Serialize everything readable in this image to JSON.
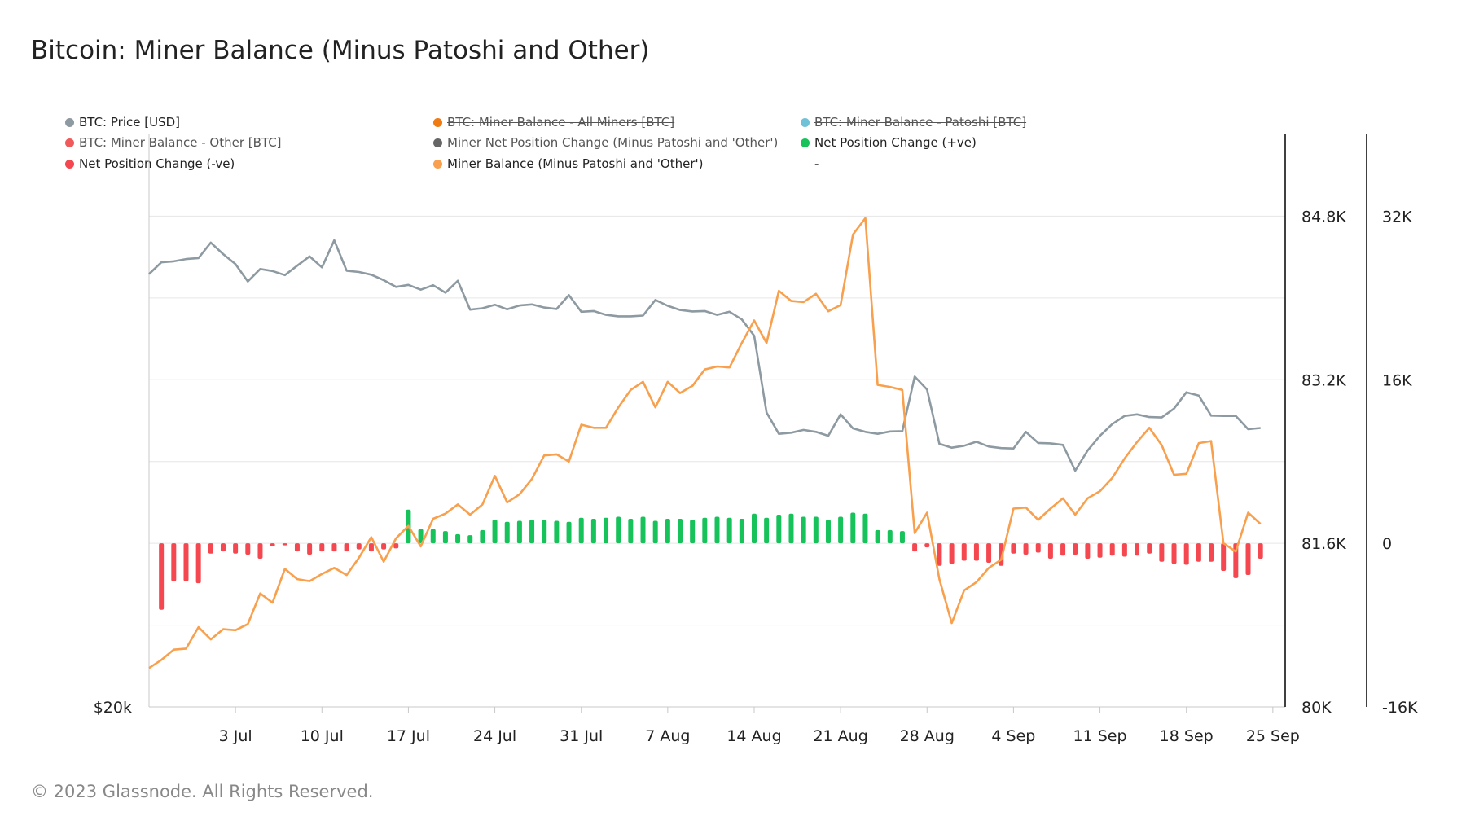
{
  "title": "Bitcoin: Miner Balance (Minus Patoshi and Other)",
  "footer": "© 2023 Glassnode. All Rights Reserved.",
  "legend": [
    {
      "label": "BTC: Price [USD]",
      "color": "#8e9aa1",
      "active": true
    },
    {
      "label": "BTC: Miner Balance - All Miners [BTC]",
      "color": "#f07b12",
      "active": false
    },
    {
      "label": "BTC: Miner Balance - Patoshi [BTC]",
      "color": "#6fc1d8",
      "active": false
    },
    {
      "label": "BTC: Miner Balance - Other [BTC]",
      "color": "#f05a5a",
      "active": false
    },
    {
      "label": "Miner Net Position Change (Minus Patoshi and 'Other')",
      "color": "#666666",
      "active": false
    },
    {
      "label": "Net Position Change (+ve)",
      "color": "#16c25a",
      "active": true
    },
    {
      "label": "Net Position Change (-ve)",
      "color": "#f5474f",
      "active": true
    },
    {
      "label": "Miner Balance (Minus Patoshi and 'Other')",
      "color": "#f8a04d",
      "active": true
    },
    {
      "label": "-",
      "color": "",
      "active": true
    }
  ],
  "chart_data": {
    "type": "line",
    "x_start": "2023-06-26",
    "x_end": "2023-09-26",
    "x_tick_labels": [
      "3 Jul",
      "10 Jul",
      "17 Jul",
      "24 Jul",
      "31 Jul",
      "7 Aug",
      "14 Aug",
      "21 Aug",
      "28 Aug",
      "4 Sep",
      "11 Sep",
      "18 Sep",
      "25 Sep"
    ],
    "x_tick_dates": [
      "2023-07-03",
      "2023-07-10",
      "2023-07-17",
      "2023-07-24",
      "2023-07-31",
      "2023-08-07",
      "2023-08-14",
      "2023-08-21",
      "2023-08-28",
      "2023-09-04",
      "2023-09-11",
      "2023-09-18",
      "2023-09-25"
    ],
    "axes": {
      "price": {
        "position": "left",
        "scale": "log",
        "tick_labels": [
          "$20k"
        ],
        "tick_values": [
          20000
        ]
      },
      "balance": {
        "position": "right",
        "range": [
          80000,
          85600
        ],
        "tick_labels": [
          "80K",
          "81.6K",
          "83.2K",
          "84.8K"
        ],
        "tick_values": [
          80000,
          81600,
          83200,
          84800
        ]
      },
      "position_change": {
        "position": "right",
        "range": [
          -16000,
          40000
        ],
        "tick_labels": [
          "-16K",
          "0",
          "16K",
          "32K"
        ],
        "tick_values": [
          -16000,
          0,
          16000,
          32000
        ]
      }
    },
    "grid": true,
    "legend_position": "top",
    "series": [
      {
        "name": "BTC: Price [USD]",
        "axis": "price",
        "color": "#8e9aa1",
        "style": "line",
        "values": [
          30500,
          30850,
          30880,
          30950,
          30980,
          31450,
          31100,
          30800,
          30280,
          30650,
          30590,
          30470,
          30750,
          31030,
          30700,
          31520,
          30600,
          30560,
          30480,
          30320,
          30120,
          30180,
          30040,
          30170,
          29950,
          30300,
          29460,
          29500,
          29600,
          29470,
          29580,
          29610,
          29520,
          29480,
          29880,
          29400,
          29420,
          29310,
          29270,
          29270,
          29290,
          29740,
          29570,
          29450,
          29410,
          29420,
          29310,
          29400,
          29180,
          28720,
          26650,
          26100,
          26130,
          26200,
          26150,
          26050,
          26600,
          26240,
          26150,
          26100,
          26160,
          26170,
          27600,
          27250,
          25850,
          25750,
          25800,
          25900,
          25780,
          25740,
          25730,
          26150,
          25870,
          25860,
          25820,
          25180,
          25680,
          26050,
          26350,
          26560,
          26600,
          26530,
          26520,
          26750,
          27180,
          27090,
          26570,
          26560,
          26560,
          26220,
          26250
        ]
      },
      {
        "name": "Miner Balance (Minus Patoshi and 'Other')",
        "axis": "balance",
        "color": "#f8a04d",
        "style": "line",
        "values": [
          80380,
          80460,
          80560,
          80570,
          80780,
          80660,
          80760,
          80750,
          80810,
          81110,
          81020,
          81350,
          81250,
          81230,
          81300,
          81360,
          81290,
          81460,
          81660,
          81420,
          81650,
          81770,
          81570,
          81840,
          81890,
          81980,
          81880,
          81980,
          82260,
          82000,
          82080,
          82230,
          82460,
          82470,
          82400,
          82760,
          82730,
          82730,
          82930,
          83100,
          83180,
          82930,
          83180,
          83070,
          83140,
          83300,
          83330,
          83320,
          83560,
          83780,
          83560,
          84070,
          83970,
          83960,
          84040,
          83870,
          83930,
          84620,
          84780,
          83150,
          83130,
          83100,
          81700,
          81900,
          81250,
          80820,
          81140,
          81220,
          81360,
          81440,
          81940,
          81950,
          81830,
          81940,
          82040,
          81880,
          82040,
          82110,
          82240,
          82430,
          82590,
          82730,
          82560,
          82270,
          82280,
          82580,
          82600,
          81600,
          81520,
          81900,
          81790
        ]
      },
      {
        "name": "Net Position Change",
        "axis": "position_change",
        "style": "bar",
        "positive_color": "#16c25a",
        "negative_color": "#f5474f",
        "values": [
          null,
          -6500,
          -3700,
          -3700,
          -3900,
          -1000,
          -800,
          -1000,
          -1100,
          -1500,
          -300,
          -200,
          -800,
          -1100,
          -800,
          -800,
          -800,
          -600,
          -800,
          -600,
          -500,
          3300,
          1400,
          1400,
          1200,
          900,
          800,
          1300,
          2300,
          2100,
          2200,
          2300,
          2300,
          2200,
          2100,
          2500,
          2400,
          2500,
          2600,
          2400,
          2600,
          2200,
          2400,
          2400,
          2300,
          2500,
          2600,
          2500,
          2400,
          2900,
          2500,
          2800,
          2900,
          2600,
          2600,
          2300,
          2600,
          3000,
          2900,
          1300,
          1300,
          1200,
          -800,
          -400,
          -2200,
          -2000,
          -1700,
          -1700,
          -1900,
          -2200,
          -1000,
          -1100,
          -900,
          -1500,
          -1200,
          -1100,
          -1500,
          -1400,
          -1200,
          -1300,
          -1200,
          -1000,
          -1800,
          -2000,
          -2100,
          -1800,
          -1800,
          -2700,
          -3400,
          -3100,
          -1500
        ]
      }
    ]
  }
}
